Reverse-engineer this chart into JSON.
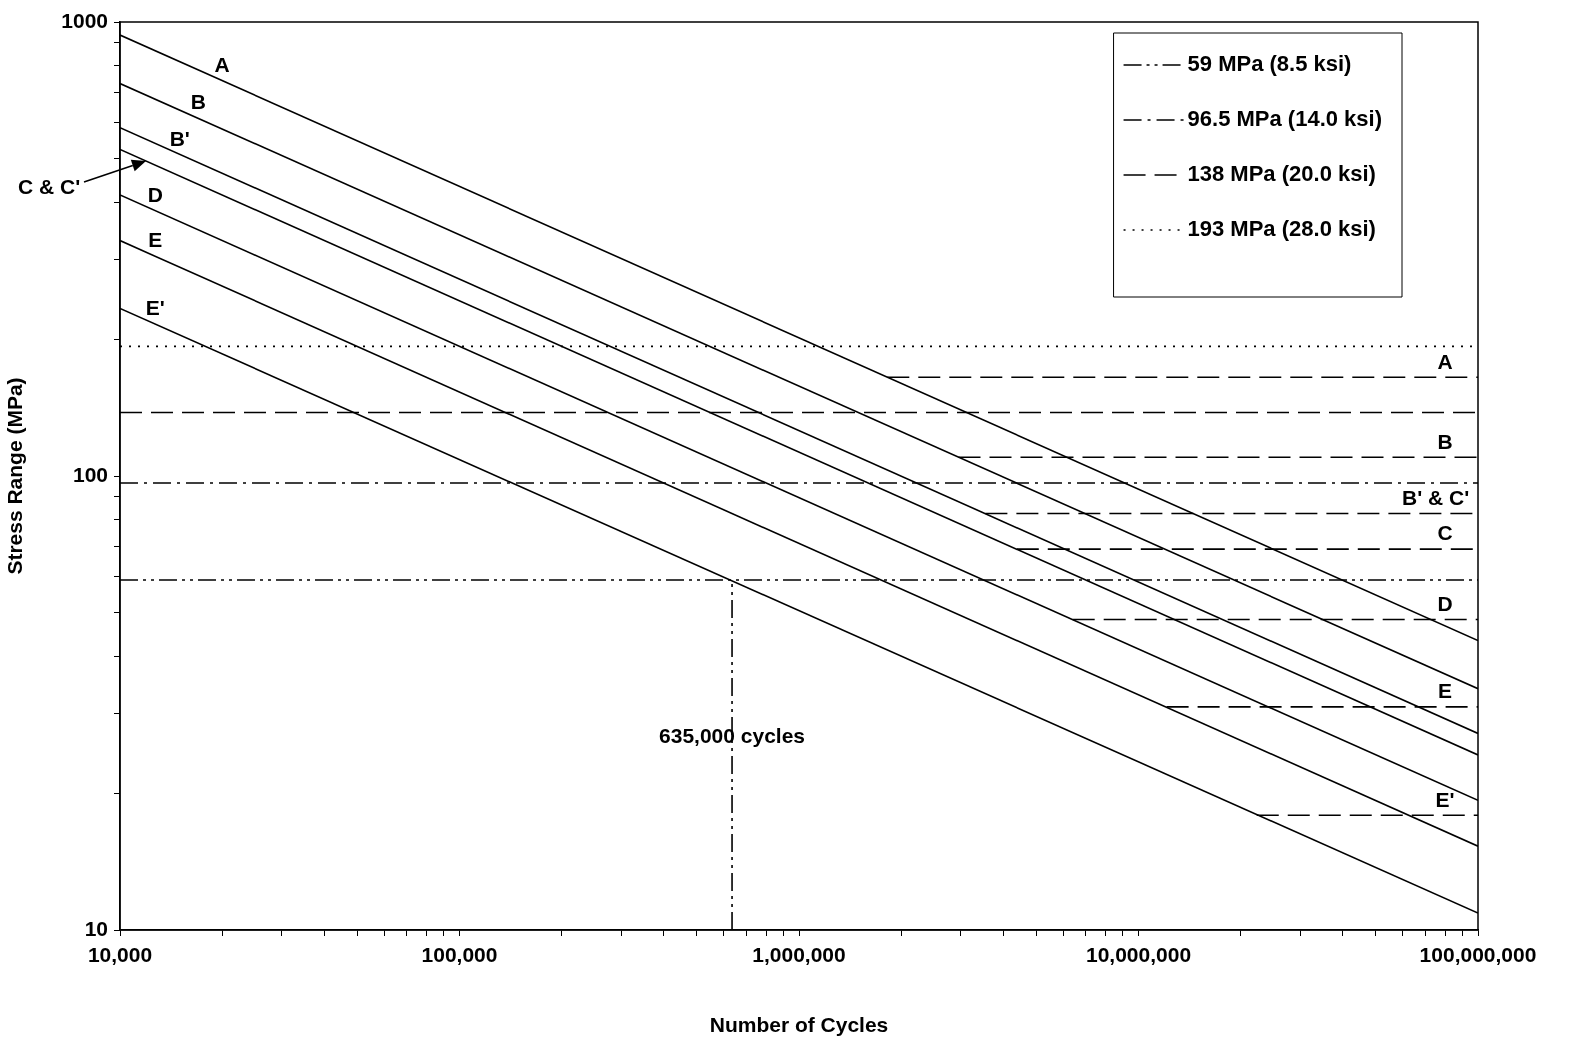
{
  "chart_data": {
    "type": "line",
    "xlabel": "Number of Cycles",
    "ylabel": "Stress Range (MPa)",
    "log": "xy",
    "grid": false,
    "legend": "top right",
    "marker": "none",
    "line_style": "solid",
    "xlim": [
      10000,
      100000000
    ],
    "ylim": [
      10,
      1000
    ],
    "xticks": [
      {
        "value": 10000,
        "label": "10,000"
      },
      {
        "value": 20000,
        "label": null
      },
      {
        "value": 30000,
        "label": null
      },
      {
        "value": 40000,
        "label": null
      },
      {
        "value": 50000,
        "label": null
      },
      {
        "value": 60000,
        "label": null
      },
      {
        "value": 70000,
        "label": null
      },
      {
        "value": 80000,
        "label": null
      },
      {
        "value": 90000,
        "label": null
      },
      {
        "value": 100000,
        "label": "100,000"
      },
      {
        "value": 200000,
        "label": null
      },
      {
        "value": 300000,
        "label": null
      },
      {
        "value": 400000,
        "label": null
      },
      {
        "value": 500000,
        "label": null
      },
      {
        "value": 600000,
        "label": null
      },
      {
        "value": 700000,
        "label": null
      },
      {
        "value": 800000,
        "label": null
      },
      {
        "value": 900000,
        "label": null
      },
      {
        "value": 1000000,
        "label": "1,000,000"
      },
      {
        "value": 2000000,
        "label": null
      },
      {
        "value": 3000000,
        "label": null
      },
      {
        "value": 4000000,
        "label": null
      },
      {
        "value": 5000000,
        "label": null
      },
      {
        "value": 6000000,
        "label": null
      },
      {
        "value": 7000000,
        "label": null
      },
      {
        "value": 8000000,
        "label": null
      },
      {
        "value": 9000000,
        "label": null
      },
      {
        "value": 10000000,
        "label": "10,000,000"
      },
      {
        "value": 20000000,
        "label": null
      },
      {
        "value": 30000000,
        "label": null
      },
      {
        "value": 40000000,
        "label": null
      },
      {
        "value": 50000000,
        "label": null
      },
      {
        "value": 60000000,
        "label": null
      },
      {
        "value": 70000000,
        "label": null
      },
      {
        "value": 80000000,
        "label": null
      },
      {
        "value": 90000000,
        "label": null
      },
      {
        "value": 100000000,
        "label": "100,000,000"
      }
    ],
    "yticks": [
      10,
      {
        "value": 20,
        "label": null
      },
      {
        "value": 30,
        "label": null
      },
      {
        "value": 40,
        "label": null
      },
      {
        "value": 50,
        "label": null
      },
      {
        "value": 60,
        "label": null
      },
      {
        "value": 70,
        "label": null
      },
      {
        "value": 80,
        "label": null
      },
      {
        "value": 90,
        "label": null
      },
      100,
      {
        "value": 200,
        "label": null
      },
      {
        "value": 300,
        "label": null
      },
      {
        "value": 400,
        "label": null
      },
      {
        "value": 500,
        "label": null
      },
      {
        "value": 600,
        "label": null
      },
      {
        "value": 700,
        "label": null
      },
      {
        "value": 800,
        "label": null
      },
      {
        "value": 900,
        "label": null
      },
      1000
    ],
    "series": [
      {
        "x": [
          10000,
          100000000
        ],
        "values": [
          936,
          43.4
        ],
        "color": "#000000"
      },
      {
        "x": [
          10000,
          100000000
        ],
        "values": [
          732,
          34.0
        ],
        "color": "#000000"
      },
      {
        "x": [
          10000,
          100000000
        ],
        "values": [
          585,
          27.1
        ],
        "color": "#000000"
      },
      {
        "x": [
          10000,
          100000000
        ],
        "values": [
          524,
          24.3
        ],
        "color": "#000000"
      },
      {
        "x": [
          10000,
          100000000
        ],
        "values": [
          416,
          19.3
        ],
        "color": "#000000"
      },
      {
        "x": [
          10000,
          100000000
        ],
        "values": [
          330,
          15.3
        ],
        "color": "#000000"
      },
      {
        "x": [
          10000,
          100000000
        ],
        "values": [
          234,
          10.9
        ],
        "color": "#000000"
      },
      {
        "x": [
          1820000,
          100000000
        ],
        "values": [
          165,
          165
        ],
        "color": "#000000",
        "line_style": "dashed"
      },
      {
        "x": [
          2950000,
          100000000
        ],
        "values": [
          110,
          110
        ],
        "color": "#000000",
        "line_style": "dashed"
      },
      {
        "x": [
          3540000,
          100000000
        ],
        "values": [
          82.7,
          82.7
        ],
        "color": "#000000",
        "line_style": "dashed"
      },
      {
        "x": [
          4380000,
          100000000
        ],
        "values": [
          69,
          69
        ],
        "color": "#000000",
        "line_style": "dashed"
      },
      {
        "x": [
          6400000,
          100000000
        ],
        "values": [
          48.3,
          48.3
        ],
        "color": "#000000",
        "line_style": "dashed"
      },
      {
        "x": [
          12100000,
          100000000
        ],
        "values": [
          31,
          31
        ],
        "color": "#000000",
        "line_style": "dashed"
      },
      {
        "x": [
          22300000,
          100000000
        ],
        "values": [
          17.9,
          17.9
        ],
        "color": "#000000",
        "line_style": "dashed"
      },
      {
        "x": [
          635000,
          635000
        ],
        "values": [
          10,
          59
        ],
        "color": "#000000",
        "line_style": "dashdotdot"
      },
      {
        "name": "59 MPa (8.5 ksi)",
        "x": [
          10000,
          100000000
        ],
        "values": [
          59,
          59
        ],
        "color": "#000000",
        "line_style": "dashdotdot"
      },
      {
        "name": "96.5 MPa (14.0 ksi)",
        "x": [
          10000,
          100000000
        ],
        "values": [
          96.5,
          96.5
        ],
        "color": "#000000",
        "line_style": "dashdot"
      },
      {
        "name": "138 MPa (20.0 ksi)",
        "x": [
          10000,
          100000000
        ],
        "values": [
          138,
          138
        ],
        "color": "#000000",
        "line_style": "dashed"
      },
      {
        "name": "193 MPa (28.0 ksi)",
        "x": [
          10000,
          100000000
        ],
        "values": [
          193,
          193
        ],
        "color": "#000000",
        "line_style": "dotted"
      }
    ],
    "annotations": [
      {
        "text": "A",
        "x": 20000,
        "y": 743
      },
      {
        "text": "B",
        "x": 17000,
        "y": 614
      },
      {
        "text": "B'",
        "x": 15000,
        "y": 511
      },
      "C & C'",
      {
        "text": "D",
        "x": 12700,
        "y": 384
      },
      {
        "text": "E",
        "x": 12700,
        "y": 305
      },
      {
        "text": "E'",
        "x": 12700,
        "y": 216
      },
      {
        "text": "A",
        "x": 80000000,
        "y": 165
      },
      {
        "text": "B",
        "x": 80000000,
        "y": 110
      },
      {
        "text": "B' & C'",
        "x": 75000000,
        "y": 82.7
      },
      {
        "text": "C",
        "x": 80000000,
        "y": 69
      },
      {
        "text": "D",
        "x": 80000000,
        "y": 48.3
      },
      {
        "text": "E",
        "x": 80000000,
        "y": 31
      },
      {
        "text": "E'",
        "x": 80000000,
        "y": 17.9
      },
      {
        "text": "635,000 cycles",
        "x": 635000,
        "y": 24.7
      }
    ]
  }
}
